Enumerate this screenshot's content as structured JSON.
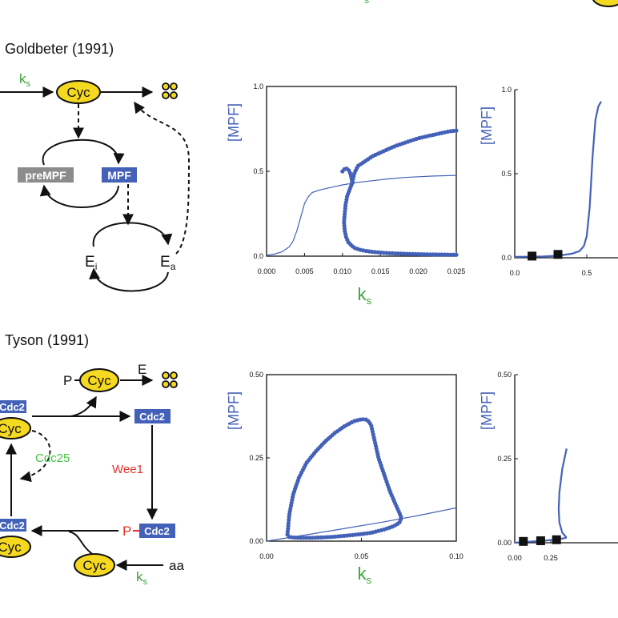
{
  "colors": {
    "blue": "#4361b8",
    "green": "#3aa53a",
    "red": "#e2342a",
    "yellow": "#f5d820",
    "gray": "#8c8c8c",
    "light_green": "#44c244"
  },
  "panel_top": {
    "title": "Goldbeter (1991)",
    "diagram": {
      "ks": "k",
      "ks_sub": "s",
      "cyc": "Cyc",
      "premp": "preMPF",
      "mpf": "MPF",
      "ei": "E",
      "ei_sub": "i",
      "ea": "E",
      "ea_sub": "a",
      "degradation_icon": "four-dots-icon"
    }
  },
  "panel_bottom": {
    "title": "Tyson (1991)",
    "diagram": {
      "p": "P",
      "cyc": "Cyc",
      "e": "E",
      "cdc2": "Cdc2",
      "cdc25": "Cdc25",
      "wee1": "Wee1",
      "aa": "aa",
      "ks": "k",
      "ks_sub": "s",
      "degradation_icon": "four-dots-icon"
    }
  },
  "top_cut_text": "s",
  "chart_data": [
    {
      "type": "line",
      "ylabel": "[MPF]",
      "xlabel": "k",
      "xlabel_sub": "s",
      "xlim": [
        0,
        0.025
      ],
      "ylim": [
        0,
        1.0
      ],
      "xticks": [
        "0.000",
        "0.005",
        "0.010",
        "0.015",
        "0.020",
        "0.025"
      ],
      "yticks": [
        "0.0",
        "0.5",
        "1.0"
      ],
      "series": [
        {
          "style": "thin",
          "x": [
            0.0,
            0.001,
            0.002,
            0.003,
            0.0035,
            0.004,
            0.0045,
            0.005,
            0.0055,
            0.006,
            0.007,
            0.008,
            0.009,
            0.01,
            0.012,
            0.014,
            0.016,
            0.018,
            0.02,
            0.022,
            0.025
          ],
          "y": [
            0.005,
            0.012,
            0.025,
            0.055,
            0.09,
            0.15,
            0.23,
            0.31,
            0.35,
            0.375,
            0.39,
            0.4,
            0.41,
            0.42,
            0.435,
            0.445,
            0.455,
            0.463,
            0.468,
            0.472,
            0.476
          ]
        },
        {
          "style": "thick",
          "x": [
            0.01,
            0.0104,
            0.0108,
            0.0111,
            0.0113,
            0.0115,
            0.012,
            0.013,
            0.014,
            0.015,
            0.016,
            0.017,
            0.018,
            0.019,
            0.02,
            0.021,
            0.022,
            0.023,
            0.024,
            0.025
          ],
          "y": [
            0.5,
            0.52,
            0.51,
            0.48,
            0.43,
            0.48,
            0.53,
            0.56,
            0.59,
            0.61,
            0.63,
            0.65,
            0.665,
            0.68,
            0.695,
            0.705,
            0.715,
            0.725,
            0.735,
            0.74
          ]
        },
        {
          "style": "thick",
          "x": [
            0.0113,
            0.011,
            0.0106,
            0.0104,
            0.0103,
            0.0102,
            0.0103,
            0.0105,
            0.0108,
            0.0115,
            0.0125,
            0.014,
            0.016,
            0.018,
            0.02,
            0.022,
            0.025
          ],
          "y": [
            0.43,
            0.4,
            0.35,
            0.3,
            0.25,
            0.2,
            0.15,
            0.11,
            0.08,
            0.05,
            0.035,
            0.025,
            0.018,
            0.014,
            0.012,
            0.01,
            0.008
          ]
        }
      ]
    },
    {
      "type": "line",
      "ylabel": "[MPF]",
      "xlim": [
        0,
        1.0
      ],
      "ylim": [
        0,
        1.0
      ],
      "xticks": [
        "0.0",
        "0.5"
      ],
      "yticks": [
        "0.0",
        "0.5",
        "1.0"
      ],
      "series": [
        {
          "style": "thick",
          "x": [
            0.0,
            0.1,
            0.2,
            0.3,
            0.4,
            0.45,
            0.48,
            0.5,
            0.52,
            0.54,
            0.56,
            0.58,
            0.6
          ],
          "y": [
            0.005,
            0.006,
            0.008,
            0.012,
            0.025,
            0.04,
            0.07,
            0.13,
            0.3,
            0.6,
            0.82,
            0.9,
            0.93
          ]
        },
        {
          "style": "markers",
          "x": [
            0.12,
            0.3
          ],
          "y": [
            0.01,
            0.02
          ]
        }
      ]
    },
    {
      "type": "line",
      "ylabel": "[MPF]",
      "xlabel": "k",
      "xlabel_sub": "s",
      "xlim": [
        0,
        0.1
      ],
      "ylim": [
        0,
        0.5
      ],
      "xticks": [
        "0.00",
        "0.05",
        "0.10"
      ],
      "yticks": [
        "0.00",
        "0.25",
        "0.50"
      ],
      "series": [
        {
          "style": "thin",
          "x": [
            0.0,
            0.02,
            0.04,
            0.06,
            0.08,
            0.1
          ],
          "y": [
            0.0,
            0.018,
            0.037,
            0.056,
            0.077,
            0.1
          ]
        },
        {
          "style": "thick",
          "x": [
            0.011,
            0.012,
            0.014,
            0.017,
            0.021,
            0.026,
            0.031,
            0.036,
            0.041,
            0.046,
            0.05,
            0.053,
            0.055,
            0.057,
            0.059,
            0.062,
            0.065,
            0.068,
            0.07,
            0.071,
            0.07,
            0.067,
            0.062,
            0.055,
            0.045,
            0.035,
            0.025,
            0.017,
            0.012,
            0.011
          ],
          "y": [
            0.02,
            0.08,
            0.14,
            0.19,
            0.235,
            0.27,
            0.3,
            0.325,
            0.345,
            0.36,
            0.366,
            0.365,
            0.35,
            0.3,
            0.25,
            0.2,
            0.15,
            0.11,
            0.085,
            0.07,
            0.055,
            0.045,
            0.035,
            0.025,
            0.018,
            0.013,
            0.01,
            0.01,
            0.012,
            0.02
          ]
        }
      ]
    },
    {
      "type": "line",
      "ylabel": "[MPF]",
      "xlim": [
        0,
        1.0
      ],
      "ylim": [
        0,
        0.5
      ],
      "xticks": [
        "0.00",
        "0.25"
      ],
      "yticks": [
        "0.00",
        "0.25",
        "0.50"
      ],
      "series": [
        {
          "style": "thick",
          "x": [
            0.0,
            0.1,
            0.2,
            0.3,
            0.36
          ],
          "y": [
            0.0,
            0.003,
            0.006,
            0.01,
            0.015
          ]
        },
        {
          "style": "thick",
          "x": [
            0.36,
            0.33,
            0.31,
            0.305,
            0.31,
            0.33,
            0.36
          ],
          "y": [
            0.015,
            0.03,
            0.06,
            0.1,
            0.15,
            0.22,
            0.28
          ]
        },
        {
          "style": "markers",
          "x": [
            0.06,
            0.18,
            0.29
          ],
          "y": [
            0.004,
            0.006,
            0.009
          ]
        }
      ]
    }
  ]
}
